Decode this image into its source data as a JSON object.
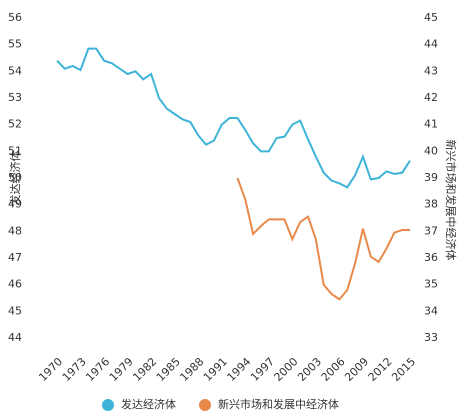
{
  "chart_data": {
    "type": "line",
    "y_label": "发达经济体",
    "y2_label": "新兴市场和发展中经济体",
    "x": [
      1970,
      1971,
      1972,
      1973,
      1974,
      1975,
      1976,
      1977,
      1978,
      1979,
      1980,
      1981,
      1982,
      1983,
      1984,
      1985,
      1986,
      1987,
      1988,
      1989,
      1990,
      1991,
      1992,
      1993,
      1994,
      1995,
      1996,
      1997,
      1998,
      1999,
      2000,
      2001,
      2002,
      2003,
      2004,
      2005,
      2006,
      2007,
      2008,
      2009,
      2010,
      2011,
      2012,
      2013,
      2014,
      2015
    ],
    "xlim": [
      1970,
      2015
    ],
    "xticks": [
      1970,
      1973,
      1976,
      1979,
      1982,
      1985,
      1988,
      1991,
      1994,
      1997,
      2000,
      2003,
      2006,
      2009,
      2012,
      2015
    ],
    "ylim": [
      44,
      56
    ],
    "yticks": [
      44,
      45,
      46,
      47,
      48,
      49,
      50,
      51,
      52,
      53,
      54,
      55,
      56
    ],
    "y2lim": [
      33,
      45
    ],
    "y2ticks": [
      33,
      34,
      35,
      36,
      37,
      38,
      39,
      40,
      41,
      42,
      43,
      44,
      45
    ],
    "series": [
      {
        "name": "发达经济体",
        "color": "#3db3d8",
        "values": [
          54.4,
          54.1,
          54.2,
          54.05,
          54.85,
          54.85,
          54.4,
          54.3,
          54.1,
          53.9,
          54.0,
          53.7,
          53.9,
          53.0,
          52.6,
          52.4,
          52.2,
          52.1,
          51.6,
          51.25,
          51.4,
          52.0,
          52.25,
          52.25,
          51.8,
          51.3,
          51.0,
          51.0,
          51.5,
          51.55,
          52.0,
          52.15,
          51.45,
          50.8,
          50.2,
          49.9,
          49.8,
          49.65,
          50.1,
          50.8,
          49.95,
          50.0,
          50.25,
          50.15,
          50.2,
          50.65
        ]
      },
      {
        "name": "新兴市场和发展中经济体",
        "color": "#e8894a",
        "axis": "y2",
        "values": [
          null,
          null,
          null,
          null,
          null,
          null,
          null,
          null,
          null,
          null,
          null,
          null,
          null,
          null,
          null,
          null,
          null,
          null,
          null,
          null,
          null,
          null,
          null,
          39.0,
          38.2,
          36.9,
          37.2,
          37.45,
          37.45,
          37.45,
          36.7,
          37.35,
          37.55,
          36.7,
          35.0,
          34.65,
          34.45,
          34.8,
          35.8,
          37.1,
          36.05,
          35.85,
          36.35,
          36.95,
          37.05,
          37.05
        ]
      }
    ]
  }
}
